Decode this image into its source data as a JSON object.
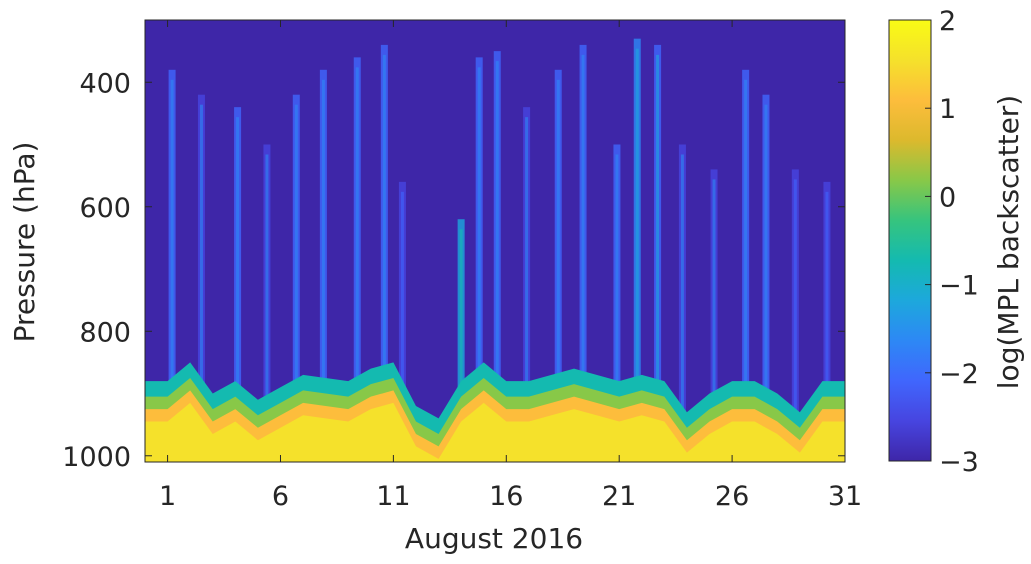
{
  "chart_data": {
    "type": "heatmap",
    "xlabel": "August 2016",
    "ylabel": "Pressure (hPa)",
    "colorbar_label": "log(MPL backscatter)",
    "xlim": [
      0,
      31
    ],
    "ylim": [
      300,
      1010
    ],
    "y_reversed": true,
    "clim": [
      -3,
      2
    ],
    "x_ticks": [
      1,
      6,
      11,
      16,
      21,
      26,
      31
    ],
    "x_tick_labels": [
      "1",
      "6",
      "11",
      "16",
      "21",
      "26",
      "31"
    ],
    "y_ticks": [
      400,
      600,
      800,
      1000
    ],
    "y_tick_labels": [
      "400",
      "600",
      "800",
      "1000"
    ],
    "colorbar_ticks": [
      2,
      1,
      0,
      -1,
      -2,
      -3
    ],
    "colorbar_tick_labels": [
      "2",
      "1",
      "0",
      "−1",
      "−2",
      "−3"
    ],
    "colormap": [
      "#3e26a8",
      "#4745e0",
      "#4066fd",
      "#2d88f5",
      "#1da8dc",
      "#14bab0",
      "#36c47e",
      "#88c848",
      "#dcb92d",
      "#fdbd3c",
      "#f5e12b",
      "#f9fb15"
    ],
    "boundary_layer_top_hPa": [
      {
        "day": 1,
        "top": 880
      },
      {
        "day": 2,
        "top": 850
      },
      {
        "day": 3,
        "top": 900
      },
      {
        "day": 4,
        "top": 880
      },
      {
        "day": 5,
        "top": 910
      },
      {
        "day": 6,
        "top": 890
      },
      {
        "day": 7,
        "top": 870
      },
      {
        "day": 8,
        "top": 875
      },
      {
        "day": 9,
        "top": 880
      },
      {
        "day": 10,
        "top": 860
      },
      {
        "day": 11,
        "top": 850
      },
      {
        "day": 12,
        "top": 920
      },
      {
        "day": 13,
        "top": 940
      },
      {
        "day": 14,
        "top": 880
      },
      {
        "day": 15,
        "top": 850
      },
      {
        "day": 16,
        "top": 880
      },
      {
        "day": 17,
        "top": 880
      },
      {
        "day": 18,
        "top": 870
      },
      {
        "day": 19,
        "top": 860
      },
      {
        "day": 20,
        "top": 870
      },
      {
        "day": 21,
        "top": 880
      },
      {
        "day": 22,
        "top": 870
      },
      {
        "day": 23,
        "top": 880
      },
      {
        "day": 24,
        "top": 930
      },
      {
        "day": 25,
        "top": 900
      },
      {
        "day": 26,
        "top": 880
      },
      {
        "day": 27,
        "top": 880
      },
      {
        "day": 28,
        "top": 900
      },
      {
        "day": 29,
        "top": 930
      },
      {
        "day": 30,
        "top": 880
      },
      {
        "day": 31,
        "top": 880
      }
    ],
    "plumes": [
      {
        "day": 1.2,
        "top_hPa": 380,
        "value": -2.3
      },
      {
        "day": 2.5,
        "top_hPa": 420,
        "value": -2.4
      },
      {
        "day": 4.1,
        "top_hPa": 440,
        "value": -2.3
      },
      {
        "day": 5.4,
        "top_hPa": 500,
        "value": -2.4
      },
      {
        "day": 6.7,
        "top_hPa": 420,
        "value": -2.2
      },
      {
        "day": 7.9,
        "top_hPa": 380,
        "value": -2.3
      },
      {
        "day": 9.4,
        "top_hPa": 360,
        "value": -2.2
      },
      {
        "day": 10.6,
        "top_hPa": 340,
        "value": -2.2
      },
      {
        "day": 11.4,
        "top_hPa": 560,
        "value": -2.5
      },
      {
        "day": 14.0,
        "top_hPa": 620,
        "value": -1.2
      },
      {
        "day": 14.8,
        "top_hPa": 360,
        "value": -2.2
      },
      {
        "day": 15.6,
        "top_hPa": 350,
        "value": -2.2
      },
      {
        "day": 16.9,
        "top_hPa": 440,
        "value": -2.4
      },
      {
        "day": 18.3,
        "top_hPa": 380,
        "value": -2.3
      },
      {
        "day": 19.4,
        "top_hPa": 340,
        "value": -2.2
      },
      {
        "day": 20.9,
        "top_hPa": 500,
        "value": -2.3
      },
      {
        "day": 21.8,
        "top_hPa": 330,
        "value": -1.6
      },
      {
        "day": 22.7,
        "top_hPa": 340,
        "value": -2.0
      },
      {
        "day": 23.8,
        "top_hPa": 500,
        "value": -2.4
      },
      {
        "day": 25.2,
        "top_hPa": 540,
        "value": -2.4
      },
      {
        "day": 26.6,
        "top_hPa": 380,
        "value": -2.2
      },
      {
        "day": 27.5,
        "top_hPa": 420,
        "value": -2.3
      },
      {
        "day": 28.8,
        "top_hPa": 540,
        "value": -2.5
      },
      {
        "day": 30.2,
        "top_hPa": 560,
        "value": -2.5
      }
    ]
  }
}
